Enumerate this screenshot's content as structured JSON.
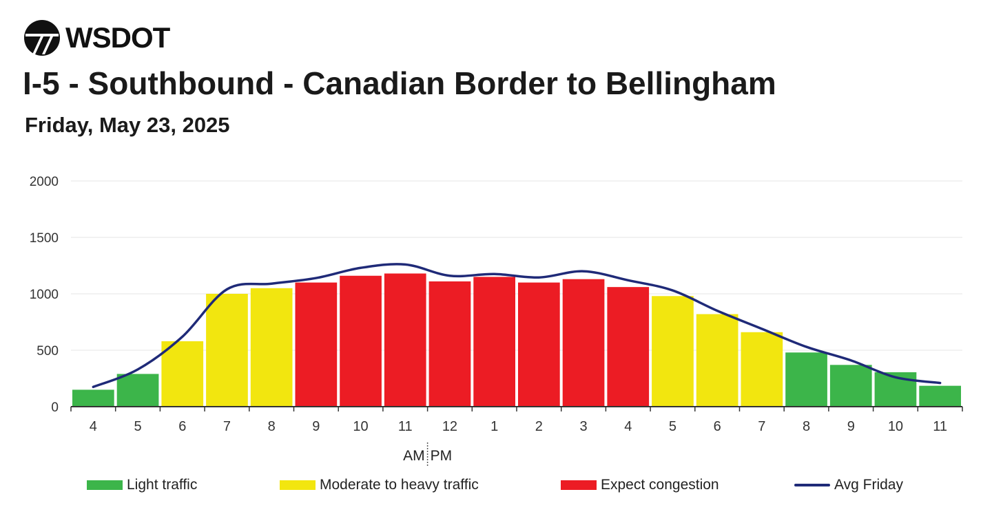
{
  "header": {
    "logo_text": "WSDOT",
    "logo_icon": "wsdot-logo-icon",
    "title": "I-5 - Southbound - Canadian Border to Bellingham",
    "subtitle": "Friday, May 23, 2025"
  },
  "colors": {
    "light": "#3cb54a",
    "moderate": "#f2e60f",
    "congestion": "#ec1c24",
    "avg_line": "#1f2a78",
    "grid": "#e6e6e6",
    "axis": "#333333"
  },
  "legend": [
    {
      "label": "Light traffic",
      "status": "light",
      "kind": "swatch"
    },
    {
      "label": "Moderate to heavy traffic",
      "status": "moderate",
      "kind": "swatch"
    },
    {
      "label": "Expect congestion",
      "status": "congestion",
      "kind": "swatch"
    },
    {
      "label": "Avg Friday",
      "status": "avg_line",
      "kind": "line"
    }
  ],
  "chart_data": {
    "type": "bar",
    "title": "",
    "xlabel": "",
    "ylabel": "",
    "ylim": [
      0,
      2000
    ],
    "yticks": [
      0,
      500,
      1000,
      1500,
      2000
    ],
    "grid": true,
    "legend_position": "bottom",
    "am_label": "AM",
    "pm_label": "PM",
    "am_pm_divider_after": "11",
    "categories": [
      "4",
      "5",
      "6",
      "7",
      "8",
      "9",
      "10",
      "11",
      "12",
      "1",
      "2",
      "3",
      "4",
      "5",
      "6",
      "7",
      "8",
      "9",
      "10",
      "11"
    ],
    "series": [
      {
        "kind": "bar",
        "values": [
          150,
          290,
          580,
          1000,
          1050,
          1100,
          1160,
          1180,
          1110,
          1150,
          1100,
          1130,
          1060,
          980,
          820,
          660,
          480,
          370,
          305,
          185
        ],
        "status": [
          "light",
          "light",
          "moderate",
          "moderate",
          "moderate",
          "congestion",
          "congestion",
          "congestion",
          "congestion",
          "congestion",
          "congestion",
          "congestion",
          "congestion",
          "moderate",
          "moderate",
          "moderate",
          "light",
          "light",
          "light",
          "light"
        ]
      },
      {
        "kind": "line",
        "name": "Avg Friday",
        "values": [
          175,
          330,
          620,
          1040,
          1090,
          1140,
          1230,
          1260,
          1160,
          1175,
          1145,
          1200,
          1120,
          1030,
          850,
          690,
          530,
          410,
          260,
          210
        ]
      }
    ]
  }
}
